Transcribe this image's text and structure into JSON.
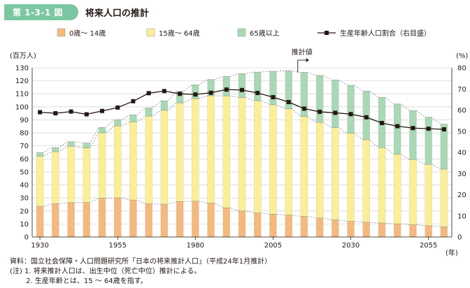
{
  "header": {
    "badge": "第 1-3-1 図",
    "title": "将来人口の推計"
  },
  "colors": {
    "under15": "#f5b97c",
    "age15_64": "#fbef94",
    "over65": "#a8d8b4",
    "line": "#231815",
    "grid": "#c9c9c9",
    "badge": "#7cc7a1"
  },
  "chart_data": {
    "type": "bar",
    "stacked": true,
    "title": "将来人口の推計",
    "left_axis_label": "(百万人)",
    "right_axis_label": "(%)",
    "x_unit_label": "(年)",
    "projection_label": "推計値",
    "ylim": [
      0,
      130
    ],
    "y_ticks": [
      0,
      10,
      20,
      30,
      40,
      50,
      60,
      70,
      80,
      90,
      100,
      110,
      120,
      130
    ],
    "y2lim": [
      0,
      80
    ],
    "y2_ticks": [
      0,
      10,
      20,
      30,
      40,
      50,
      60,
      70,
      80
    ],
    "x_tick_labels": [
      "1930",
      "1955",
      "1980",
      "2005",
      "2030",
      "2055"
    ],
    "x_tick_years": [
      1930,
      1955,
      1980,
      2005,
      2030,
      2055
    ],
    "years": [
      1930,
      1935,
      1940,
      1945,
      1950,
      1955,
      1960,
      1965,
      1970,
      1975,
      1980,
      1985,
      1990,
      1995,
      2000,
      2005,
      2010,
      2015,
      2020,
      2025,
      2030,
      2035,
      2040,
      2045,
      2050,
      2055,
      2060
    ],
    "projection_start_year": 2015,
    "series": [
      {
        "name": "0歳～ 14歳",
        "values": [
          23.6,
          25.5,
          26.4,
          26.5,
          29.8,
          30.1,
          28.4,
          25.5,
          25.2,
          27.2,
          27.5,
          26.0,
          22.5,
          20.0,
          18.5,
          17.5,
          16.8,
          15.8,
          14.6,
          13.2,
          12.0,
          11.3,
          10.7,
          10.1,
          9.4,
          8.6,
          7.9
        ]
      },
      {
        "name": "15歳～ 64歳",
        "values": [
          38.4,
          40.0,
          43.3,
          42.0,
          50.2,
          55.2,
          60.0,
          67.4,
          72.1,
          75.8,
          78.8,
          82.5,
          85.9,
          87.2,
          86.2,
          84.1,
          81.7,
          76.8,
          73.4,
          70.8,
          67.7,
          63.4,
          57.9,
          53.5,
          50.0,
          47.1,
          44.2
        ]
      },
      {
        "name": "65歳以上",
        "values": [
          2.9,
          3.2,
          3.5,
          3.7,
          4.1,
          4.8,
          5.4,
          6.2,
          7.3,
          8.9,
          10.6,
          12.5,
          14.9,
          18.3,
          22.0,
          25.7,
          29.2,
          33.9,
          36.1,
          36.6,
          36.9,
          37.4,
          38.7,
          38.6,
          37.7,
          36.3,
          34.6
        ]
      }
    ],
    "line_series": {
      "name": "生産年齢人口割合（右目盛）",
      "axis": "right",
      "values": [
        59.0,
        58.5,
        59.3,
        58.0,
        59.6,
        61.2,
        64.2,
        68.0,
        69.0,
        67.7,
        67.4,
        68.2,
        69.7,
        69.5,
        68.1,
        66.1,
        63.8,
        60.7,
        59.2,
        58.7,
        58.1,
        56.6,
        53.9,
        52.4,
        51.5,
        51.2,
        50.9
      ]
    }
  },
  "notes": {
    "source": "資料：国立社会保障・人口問題研究所「日本の将来推計人口」（平成24年1月推計）",
    "note1": "(注) 1. 将来推計人口は、出生中位（死亡中位）推計による。",
    "note2": "　　 2. 生産年齢とは、15 ～ 64歳を指す。"
  }
}
